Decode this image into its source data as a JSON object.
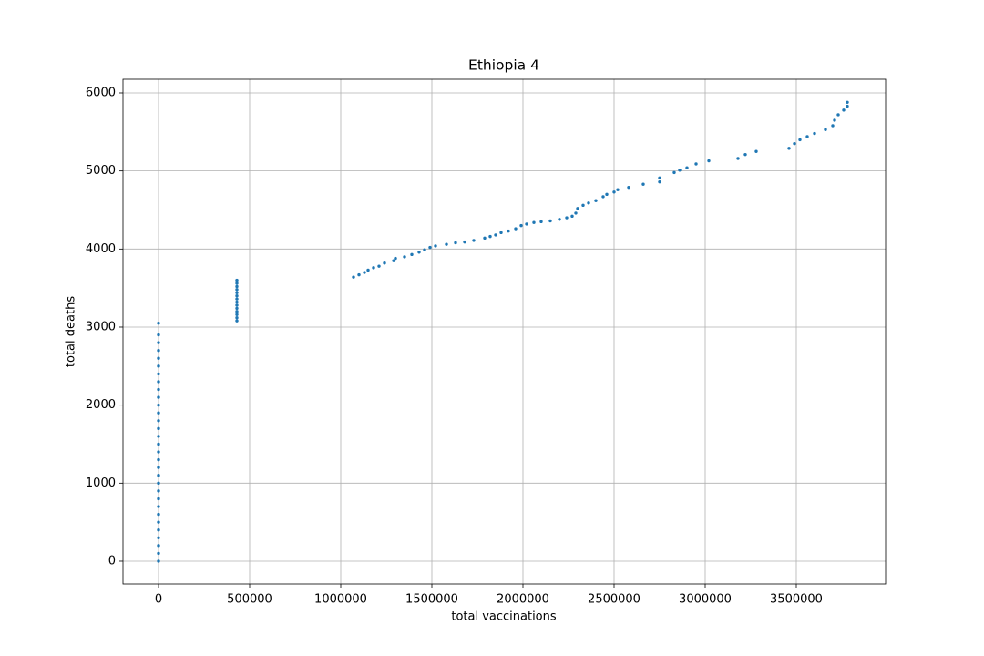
{
  "chart_data": {
    "type": "scatter",
    "title": "Ethiopia 4",
    "x_label": "total vaccinations",
    "y_label": "total deaths",
    "color": "#1f77b4",
    "grid": true,
    "x": [
      0,
      0,
      0,
      0,
      0,
      0,
      0,
      0,
      0,
      0,
      0,
      0,
      0,
      0,
      0,
      0,
      0,
      0,
      0,
      0,
      0,
      0,
      0,
      0,
      0,
      0,
      0,
      0,
      0,
      0,
      0,
      430000,
      430000,
      430000,
      430000,
      430000,
      430000,
      430000,
      430000,
      430000,
      430000,
      430000,
      430000,
      430000,
      430000,
      1070000,
      1100000,
      1130000,
      1150000,
      1180000,
      1210000,
      1240000,
      1290000,
      1300000,
      1350000,
      1390000,
      1430000,
      1460000,
      1490000,
      1520000,
      1580000,
      1630000,
      1680000,
      1730000,
      1790000,
      1820000,
      1850000,
      1880000,
      1920000,
      1960000,
      1990000,
      2020000,
      2060000,
      2100000,
      2150000,
      2200000,
      2240000,
      2270000,
      2290000,
      2300000,
      2330000,
      2360000,
      2400000,
      2440000,
      2460000,
      2500000,
      2520000,
      2580000,
      2660000,
      2750000,
      2750000,
      2830000,
      2860000,
      2900000,
      2950000,
      3020000,
      3180000,
      3220000,
      3280000,
      3460000,
      3490000,
      3520000,
      3560000,
      3600000,
      3660000,
      3700000,
      3710000,
      3730000,
      3760000,
      3780000,
      3780000
    ],
    "values": [
      0,
      100,
      200,
      300,
      400,
      500,
      600,
      700,
      800,
      900,
      1000,
      1100,
      1200,
      1300,
      1400,
      1500,
      1600,
      1700,
      1800,
      1900,
      2000,
      2100,
      2200,
      2300,
      2400,
      2500,
      2600,
      2700,
      2800,
      2900,
      3050,
      3080,
      3120,
      3160,
      3200,
      3240,
      3280,
      3320,
      3360,
      3400,
      3440,
      3480,
      3520,
      3560,
      3600,
      3640,
      3670,
      3700,
      3730,
      3760,
      3780,
      3820,
      3850,
      3880,
      3900,
      3930,
      3960,
      3990,
      4020,
      4040,
      4060,
      4080,
      4090,
      4110,
      4140,
      4160,
      4180,
      4210,
      4230,
      4260,
      4300,
      4320,
      4340,
      4350,
      4360,
      4380,
      4400,
      4420,
      4460,
      4520,
      4560,
      4590,
      4620,
      4670,
      4700,
      4730,
      4760,
      4790,
      4830,
      4860,
      4910,
      4980,
      5010,
      5040,
      5090,
      5130,
      5160,
      5210,
      5250,
      5290,
      5350,
      5400,
      5440,
      5480,
      5530,
      5580,
      5650,
      5720,
      5780,
      5830,
      5880
    ],
    "xlim": [
      -195000,
      3990000
    ],
    "ylim": [
      -292,
      6175
    ],
    "xticks": [
      0,
      500000,
      1000000,
      1500000,
      2000000,
      2500000,
      3000000,
      3500000
    ],
    "yticks": [
      0,
      1000,
      2000,
      3000,
      4000,
      5000,
      6000
    ]
  }
}
